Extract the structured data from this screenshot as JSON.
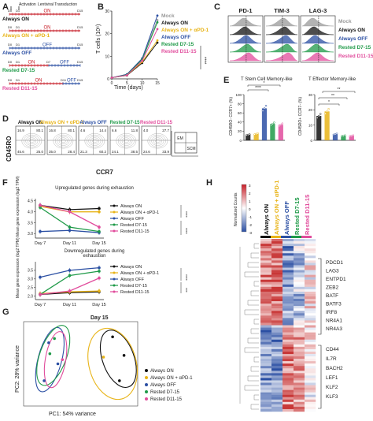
{
  "colors": {
    "always_on": "#111111",
    "always_on_pd1": "#e8b418",
    "always_off": "#2b4fa3",
    "rested_d7": "#1f9a48",
    "rested_d11": "#e14c9c",
    "mock": "#9a9a9a",
    "timeline_on": "#c8202a",
    "timeline_off": "#2b4fa3"
  },
  "panelA": {
    "letter": "A",
    "activation": "Activation",
    "transduction": "Lentiviral Transduction",
    "rows": [
      {
        "label": "Always ON",
        "segments": [
          "ON"
        ],
        "d_start": "D0",
        "d1": "D1",
        "d_end": "D15"
      },
      {
        "label": "Always ON + αPD-1",
        "segments": [
          "ON"
        ],
        "d_start": "D0",
        "d1": "D1",
        "d_end": "D15"
      },
      {
        "label": "Always OFF",
        "segments": [
          "OFF"
        ],
        "d_start": "D0",
        "d1": "D1",
        "d_end": "D15"
      },
      {
        "label": "Rested D7-15",
        "segments": [
          "ON",
          "OFF"
        ],
        "d_start": "D0",
        "d1": "D1",
        "d_mid": "D7",
        "d_end": "D15"
      },
      {
        "label": "Rested D11-15",
        "segments": [
          "ON",
          "OFF"
        ],
        "d_start": "D0",
        "d1": "D1",
        "d_mid": "D11",
        "d_end": "D15"
      }
    ]
  },
  "panelB": {
    "letter": "B",
    "ylabel": "T cells (10⁶)",
    "xlabel": "Time (days)",
    "legend": [
      "Mock",
      "Always ON",
      "Always ON + αPD-1",
      "Always OFF",
      "Rested D7-15",
      "Rested D11-15"
    ],
    "sig": "****"
  },
  "chart_data": [
    {
      "type": "line",
      "panel": "B",
      "xlabel": "Time (days)",
      "ylabel": "T cells (10⁶)",
      "x": [
        0,
        5,
        10,
        15
      ],
      "xlim": [
        0,
        15
      ],
      "ylim": [
        0,
        30
      ],
      "yticks": [
        0,
        10,
        20,
        30
      ],
      "series": [
        {
          "name": "Mock",
          "values": [
            0.5,
            2,
            9,
            26
          ]
        },
        {
          "name": "Always ON",
          "values": [
            0.5,
            1.5,
            7,
            16
          ]
        },
        {
          "name": "Always ON + αPD-1",
          "values": [
            0.5,
            1.6,
            7.5,
            17
          ]
        },
        {
          "name": "Always OFF",
          "values": [
            0.5,
            2,
            9,
            28
          ]
        },
        {
          "name": "Rested D7-15",
          "values": [
            0.5,
            1.8,
            8.5,
            25
          ]
        },
        {
          "name": "Rested D11-15",
          "values": [
            0.5,
            1.6,
            8,
            22
          ]
        }
      ]
    },
    {
      "type": "line",
      "panel": "F-upper",
      "title": "Upregulated genes during exhaustion",
      "ylabel": "Mean gene expression (log2 TPM)",
      "categories": [
        "Day 7",
        "Day 11",
        "Day 15"
      ],
      "ylim": [
        2.8,
        4.6
      ],
      "yticks": [
        3.0,
        3.5,
        4.0,
        4.5
      ],
      "series": [
        {
          "name": "Always ON",
          "values": [
            4.3,
            4.1,
            4.15
          ]
        },
        {
          "name": "Always ON + αPD-1",
          "values": [
            4.25,
            4.0,
            4.0
          ]
        },
        {
          "name": "Always OFF",
          "values": [
            3.1,
            3.15,
            3.05
          ]
        },
        {
          "name": "Rested D7-15",
          "values": [
            4.2,
            3.3,
            3.1
          ]
        },
        {
          "name": "Rested D11-15",
          "values": [
            4.3,
            4.0,
            3.3
          ]
        }
      ],
      "sig": [
        "****",
        "****"
      ]
    },
    {
      "type": "line",
      "panel": "F-lower",
      "title": "Downregulated genes during exhaustion",
      "ylabel": "Mean gene expression (log2 TPM)",
      "categories": [
        "Day 7",
        "Day 11",
        "Day 15"
      ],
      "ylim": [
        1.8,
        4.0
      ],
      "yticks": [
        2.0,
        2.5,
        3.0,
        3.5
      ],
      "series": [
        {
          "name": "Always ON",
          "values": [
            2.1,
            2.2,
            2.25
          ]
        },
        {
          "name": "Always ON + αPD-1",
          "values": [
            2.15,
            2.25,
            2.3
          ]
        },
        {
          "name": "Always OFF",
          "values": [
            3.1,
            3.5,
            3.65
          ]
        },
        {
          "name": "Rested D7-15",
          "values": [
            2.1,
            3.2,
            3.45
          ]
        },
        {
          "name": "Rested D11-15",
          "values": [
            2.1,
            2.3,
            3.05
          ]
        }
      ],
      "sig": [
        "****",
        "***"
      ]
    },
    {
      "type": "scatter",
      "panel": "G",
      "title": "Day 15",
      "xlabel": "PC1: 54% variance",
      "ylabel": "PC2: 28% variance",
      "series": [
        {
          "name": "Always ON",
          "points": [
            [
              0.78,
              0.82
            ],
            [
              0.88,
              0.6
            ],
            [
              0.84,
              0.3
            ]
          ]
        },
        {
          "name": "Always ON + αPD-1",
          "points": [
            [
              0.7,
              0.58
            ]
          ]
        },
        {
          "name": "Always OFF",
          "points": [
            [
              0.22,
              0.75
            ],
            [
              0.3,
              0.5
            ],
            [
              0.18,
              0.3
            ]
          ]
        },
        {
          "name": "Rested D7-15",
          "points": [
            [
              0.27,
              0.8
            ],
            [
              0.23,
              0.62
            ]
          ]
        },
        {
          "name": "Rested D11-15",
          "points": [
            [
              0.34,
              0.55
            ]
          ]
        }
      ]
    },
    {
      "type": "bar",
      "panel": "E-left",
      "title": "T Stem Cell Memory-like",
      "ylabel": "CD45RO- CCR7+ (%)",
      "categories": [
        "Always ON",
        "Always ON + αPD-1",
        "Always OFF",
        "Rested D7-15",
        "Rested D11-15"
      ],
      "values": [
        12,
        14,
        70,
        36,
        34
      ],
      "ylim": [
        0,
        100
      ],
      "yticks": [
        0,
        20,
        40,
        60,
        80,
        100
      ],
      "sig": [
        "****",
        "*"
      ]
    },
    {
      "type": "bar",
      "panel": "E-right",
      "title": "T Effector Memory-like",
      "ylabel": "CD45RO+ CCR7- (%)",
      "categories": [
        "Always ON",
        "Always ON + αPD-1",
        "Always OFF",
        "Rested D7-15",
        "Rested D11-15"
      ],
      "values": [
        16,
        19,
        4,
        3,
        3
      ],
      "ylim": [
        0,
        30
      ],
      "yticks": [
        0,
        10,
        20,
        30
      ],
      "sig": [
        "*",
        "**",
        "**"
      ]
    }
  ],
  "panelC": {
    "letter": "C",
    "markers": [
      "PD-1",
      "TIM-3",
      "LAG-3"
    ],
    "rows": [
      "Mock",
      "Always ON",
      "Always OFF",
      "Rested D7-15",
      "Rested D11-15"
    ]
  },
  "panelD": {
    "letter": "D",
    "ylabel": "CD45RO",
    "xlabel": "CCR7",
    "headers": [
      "Always ON",
      "Always ON + αPD-1",
      "Always OFF",
      "Rested D7-15",
      "Rested D11-15"
    ],
    "quadrants": [
      [
        "16.9",
        "80.1",
        "45.6",
        "25.0"
      ],
      [
        "16.8",
        "80.1",
        "35.0",
        "28.4"
      ],
      [
        "4.6",
        "14.4",
        "21.3",
        "60.2"
      ],
      [
        "6.6",
        "11.8",
        "24.1",
        "38.5"
      ],
      [
        "4.0",
        "27.7",
        "24.6",
        "33.9"
      ]
    ],
    "gate_labels": [
      "EM",
      "SCM"
    ]
  },
  "panelE": {
    "letter": "E"
  },
  "panelF": {
    "letter": "F",
    "legend": [
      "Always ON",
      "Always ON + αPD-1",
      "Always OFF",
      "Rested D7-15",
      "Rested D11-15"
    ]
  },
  "panelG": {
    "letter": "G",
    "legend": [
      "Always ON",
      "Always ON + αPD-1",
      "Always OFF",
      "Rested D7-15",
      "Rested D11-15"
    ]
  },
  "panelH": {
    "letter": "H",
    "scale_label": "Normalized Counts",
    "scale_ticks": [
      "3",
      "2",
      "1",
      "0",
      "-1",
      "-2",
      "-3"
    ],
    "columns": [
      "Always ON",
      "Always ON + αPD-1",
      "Always OFF",
      "Rested D7-15",
      "Rested D11-15"
    ],
    "genes_upper": [
      "PDCD1",
      "LAG3",
      "ENTPD1",
      "ZEB2",
      "BATF",
      "BATF3",
      "IRF8",
      "NR4A1",
      "NR4A3"
    ],
    "genes_lower": [
      "CD44",
      "IL7R",
      "BACH2",
      "LEF1",
      "KLF2",
      "KLF3"
    ]
  }
}
